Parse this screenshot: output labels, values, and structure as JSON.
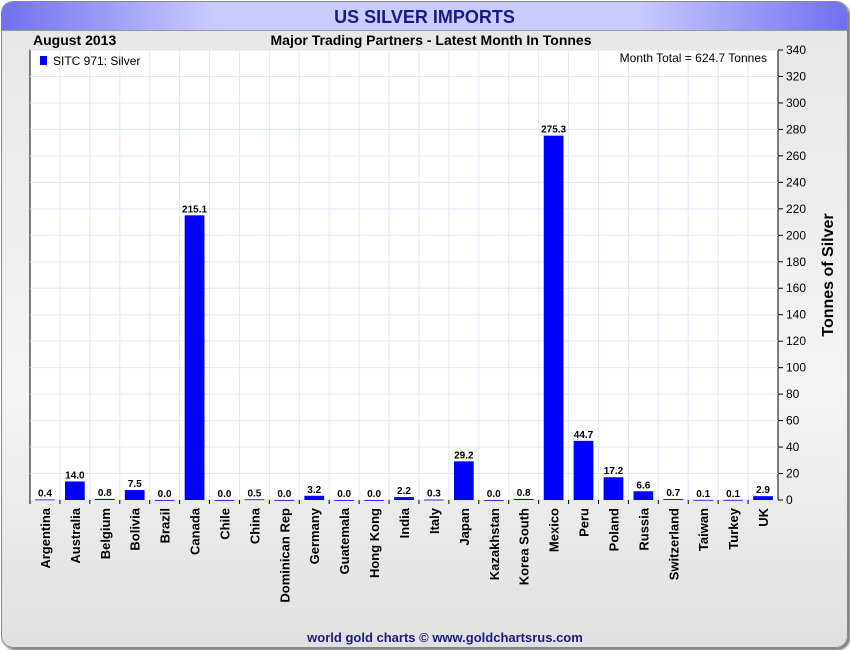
{
  "header": {
    "title": "US SILVER IMPORTS",
    "date": "August 2013",
    "subtitle": "Major Trading Partners - Latest Month In Tonnes"
  },
  "footer": {
    "credit": "world gold charts © www.goldchartsrus.com"
  },
  "chart_data": {
    "type": "bar",
    "title": "US SILVER IMPORTS",
    "subtitle": "Major Trading Partners - Latest Month In Tonnes",
    "annotation": "Month Total = 624.7 Tonnes",
    "legend": {
      "label": "SITC 971: Silver",
      "placement": "top-left"
    },
    "ylabel": "Tonnes of Silver",
    "ylim": [
      0,
      340
    ],
    "yticks": [
      0,
      20,
      40,
      60,
      80,
      100,
      120,
      140,
      160,
      180,
      200,
      220,
      240,
      260,
      280,
      300,
      320,
      340
    ],
    "grid": true,
    "bar_color": "#0000ff",
    "categories": [
      "Argentina",
      "Australia",
      "Belgium",
      "Bolivia",
      "Brazil",
      "Canada",
      "Chile",
      "China",
      "Dominican Rep",
      "Germany",
      "Guatemala",
      "Hong Kong",
      "India",
      "Italy",
      "Japan",
      "Kazakhstan",
      "Korea South",
      "Mexico",
      "Peru",
      "Poland",
      "Russia",
      "Switzerland",
      "Taiwan",
      "Turkey",
      "UK"
    ],
    "values": [
      0.4,
      14.0,
      0.8,
      7.5,
      0.0,
      215.1,
      0.0,
      0.5,
      0.0,
      3.2,
      0.0,
      0.0,
      2.2,
      0.3,
      29.2,
      0.0,
      0.8,
      275.3,
      44.7,
      17.2,
      6.6,
      0.7,
      0.1,
      0.1,
      2.9
    ]
  }
}
